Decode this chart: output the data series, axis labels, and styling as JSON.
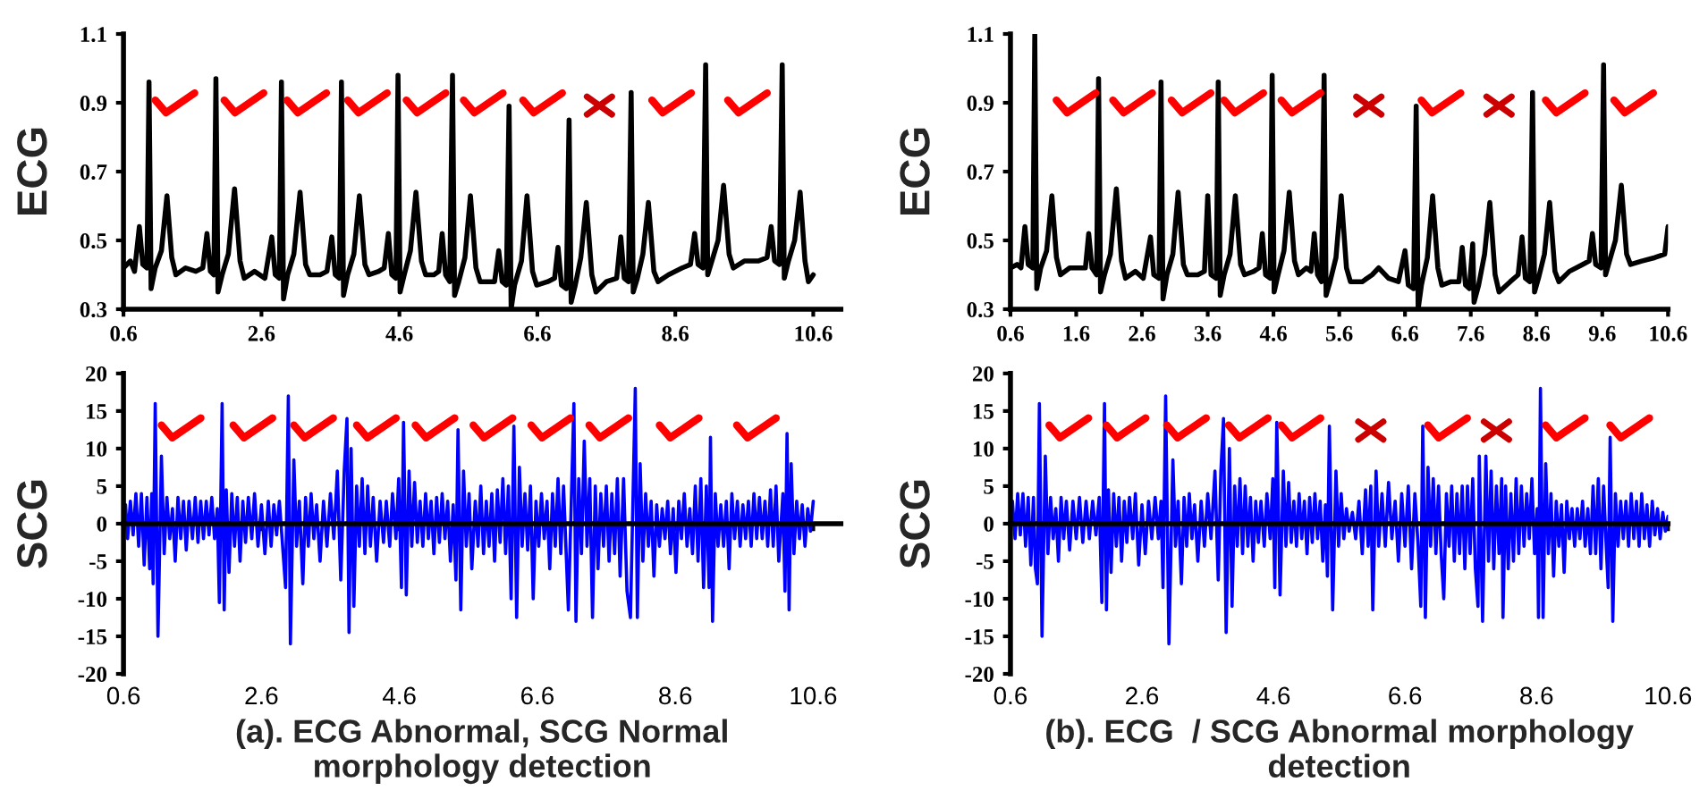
{
  "chart_data": [
    {
      "type": "line",
      "ylabel": "ECG",
      "xlim": [
        0.6,
        11.0
      ],
      "ylim": [
        0.3,
        1.1
      ],
      "xticks": [
        0.6,
        2.6,
        4.6,
        6.6,
        8.6,
        10.6
      ],
      "yticks": [
        0.3,
        0.5,
        0.7,
        0.9,
        1.1
      ],
      "series": [
        {
          "color": "#000000",
          "x": [
            0.6,
            0.7,
            0.76,
            0.83,
            0.88,
            0.94,
            0.97,
            1.0,
            1.06,
            1.15,
            1.23,
            1.3,
            1.36,
            1.5,
            1.65,
            1.75,
            1.81,
            1.86,
            1.91,
            1.94,
            1.97,
            2.03,
            2.12,
            2.21,
            2.29,
            2.35,
            2.5,
            2.65,
            2.75,
            2.8,
            2.86,
            2.89,
            2.92,
            2.98,
            3.07,
            3.16,
            3.24,
            3.3,
            3.45,
            3.55,
            3.62,
            3.67,
            3.73,
            3.76,
            3.79,
            3.85,
            3.94,
            4.02,
            4.1,
            4.16,
            4.3,
            4.38,
            4.44,
            4.49,
            4.55,
            4.58,
            4.61,
            4.67,
            4.76,
            4.84,
            4.92,
            4.98,
            5.1,
            5.17,
            5.22,
            5.27,
            5.33,
            5.37,
            5.4,
            5.46,
            5.55,
            5.63,
            5.71,
            5.77,
            5.9,
            5.98,
            6.04,
            6.09,
            6.15,
            6.19,
            6.22,
            6.27,
            6.37,
            6.45,
            6.53,
            6.59,
            6.75,
            6.85,
            6.9,
            6.95,
            7.02,
            7.06,
            7.09,
            7.15,
            7.23,
            7.31,
            7.39,
            7.45,
            7.6,
            7.75,
            7.81,
            7.86,
            7.92,
            7.96,
            7.99,
            8.05,
            8.13,
            8.21,
            8.29,
            8.35,
            8.5,
            8.7,
            8.82,
            8.88,
            8.93,
            9.0,
            9.04,
            9.07,
            9.13,
            9.22,
            9.3,
            9.38,
            9.44,
            9.6,
            9.8,
            9.93,
            9.99,
            10.04,
            10.11,
            10.15,
            10.18,
            10.24,
            10.33,
            10.41,
            10.48,
            10.53,
            10.6
          ],
          "values": [
            0.42,
            0.44,
            0.41,
            0.54,
            0.43,
            0.42,
            0.96,
            0.36,
            0.42,
            0.47,
            0.63,
            0.45,
            0.4,
            0.42,
            0.41,
            0.42,
            0.52,
            0.41,
            0.4,
            0.97,
            0.35,
            0.4,
            0.46,
            0.65,
            0.44,
            0.39,
            0.41,
            0.39,
            0.51,
            0.4,
            0.39,
            0.96,
            0.33,
            0.4,
            0.46,
            0.64,
            0.43,
            0.4,
            0.4,
            0.41,
            0.51,
            0.4,
            0.39,
            0.96,
            0.34,
            0.4,
            0.46,
            0.63,
            0.43,
            0.4,
            0.41,
            0.42,
            0.52,
            0.4,
            0.39,
            0.98,
            0.35,
            0.4,
            0.47,
            0.64,
            0.44,
            0.4,
            0.4,
            0.41,
            0.52,
            0.4,
            0.38,
            0.98,
            0.34,
            0.38,
            0.45,
            0.63,
            0.42,
            0.38,
            0.38,
            0.38,
            0.47,
            0.38,
            0.37,
            0.89,
            0.3,
            0.37,
            0.44,
            0.63,
            0.41,
            0.37,
            0.38,
            0.39,
            0.48,
            0.37,
            0.36,
            0.85,
            0.32,
            0.37,
            0.45,
            0.61,
            0.4,
            0.35,
            0.38,
            0.39,
            0.51,
            0.39,
            0.38,
            0.93,
            0.35,
            0.39,
            0.46,
            0.61,
            0.41,
            0.38,
            0.4,
            0.42,
            0.43,
            0.52,
            0.43,
            0.42,
            1.01,
            0.4,
            0.44,
            0.5,
            0.66,
            0.46,
            0.42,
            0.44,
            0.44,
            0.45,
            0.54,
            0.44,
            0.43,
            1.01,
            0.39,
            0.44,
            0.5,
            0.64,
            0.44,
            0.38,
            0.4
          ]
        }
      ]
    },
    {
      "type": "line",
      "ylabel": "ECG",
      "xlim": [
        0.6,
        10.6
      ],
      "ylim": [
        0.3,
        1.1
      ],
      "xticks": [
        0.6,
        1.6,
        2.6,
        3.6,
        4.6,
        5.6,
        6.6,
        7.6,
        8.6,
        9.6,
        10.6
      ],
      "yticks": [
        0.3,
        0.5,
        0.7,
        0.9,
        1.1
      ],
      "series": [
        {
          "color": "#000000",
          "x": [
            0.6,
            0.7,
            0.76,
            0.82,
            0.87,
            0.94,
            0.97,
            1.0,
            1.06,
            1.15,
            1.23,
            1.3,
            1.36,
            1.5,
            1.65,
            1.74,
            1.79,
            1.84,
            1.91,
            1.94,
            1.97,
            2.03,
            2.12,
            2.21,
            2.29,
            2.35,
            2.5,
            2.62,
            2.73,
            2.78,
            2.86,
            2.89,
            2.92,
            2.98,
            3.07,
            3.15,
            3.23,
            3.29,
            3.45,
            3.55,
            3.6,
            3.65,
            3.73,
            3.76,
            3.79,
            3.85,
            3.94,
            4.02,
            4.1,
            4.16,
            4.3,
            4.38,
            4.43,
            4.48,
            4.55,
            4.58,
            4.61,
            4.67,
            4.76,
            4.84,
            4.92,
            4.98,
            5.1,
            5.17,
            5.22,
            5.27,
            5.33,
            5.37,
            5.4,
            5.46,
            5.55,
            5.63,
            5.71,
            5.77,
            5.95,
            6.1,
            6.2,
            6.35,
            6.5,
            6.6,
            6.65,
            6.73,
            6.77,
            6.8,
            6.85,
            6.94,
            7.02,
            7.1,
            7.16,
            7.3,
            7.42,
            7.47,
            7.52,
            7.58,
            7.63,
            7.65,
            7.72,
            7.81,
            7.89,
            7.97,
            8.03,
            8.2,
            8.32,
            8.38,
            8.43,
            8.5,
            8.54,
            8.57,
            8.63,
            8.72,
            8.8,
            8.88,
            8.94,
            9.1,
            9.3,
            9.4,
            9.45,
            9.5,
            9.58,
            9.62,
            9.65,
            9.71,
            9.8,
            9.89,
            9.97,
            10.03,
            10.2,
            10.4,
            10.55,
            10.6
          ],
          "values": [
            0.42,
            0.43,
            0.42,
            0.54,
            0.43,
            0.42,
            1.1,
            0.36,
            0.42,
            0.47,
            0.63,
            0.45,
            0.4,
            0.42,
            0.42,
            0.42,
            0.52,
            0.42,
            0.4,
            0.97,
            0.35,
            0.4,
            0.46,
            0.65,
            0.44,
            0.39,
            0.41,
            0.39,
            0.51,
            0.4,
            0.39,
            0.96,
            0.33,
            0.4,
            0.46,
            0.64,
            0.43,
            0.4,
            0.4,
            0.41,
            0.63,
            0.4,
            0.39,
            0.96,
            0.34,
            0.4,
            0.46,
            0.63,
            0.43,
            0.4,
            0.41,
            0.42,
            0.52,
            0.4,
            0.39,
            0.98,
            0.35,
            0.4,
            0.47,
            0.64,
            0.44,
            0.4,
            0.42,
            0.41,
            0.52,
            0.4,
            0.38,
            0.98,
            0.34,
            0.38,
            0.45,
            0.63,
            0.42,
            0.38,
            0.38,
            0.4,
            0.42,
            0.39,
            0.38,
            0.47,
            0.37,
            0.36,
            0.89,
            0.3,
            0.37,
            0.45,
            0.63,
            0.42,
            0.37,
            0.38,
            0.38,
            0.48,
            0.37,
            0.36,
            0.49,
            0.32,
            0.37,
            0.46,
            0.61,
            0.4,
            0.35,
            0.38,
            0.4,
            0.51,
            0.39,
            0.38,
            0.93,
            0.35,
            0.39,
            0.46,
            0.61,
            0.41,
            0.38,
            0.41,
            0.43,
            0.44,
            0.52,
            0.43,
            0.42,
            1.01,
            0.4,
            0.44,
            0.5,
            0.66,
            0.46,
            0.43,
            0.44,
            0.45,
            0.46,
            0.54
          ]
        }
      ]
    },
    {
      "type": "line",
      "ylabel": "SCG",
      "xlim": [
        0.6,
        11.0
      ],
      "ylim": [
        -20,
        20
      ],
      "xticks": [
        0.6,
        2.6,
        4.6,
        6.6,
        8.6,
        10.6
      ],
      "yticks": [
        -20,
        -15,
        -10,
        -5,
        0,
        5,
        10,
        15,
        20
      ],
      "annotations": [
        "(a). ECG Abnormal, SCG Normal\nmorphology detection"
      ],
      "series": [
        {
          "color": "#0000ff",
          "x": [
            0.6,
            0.63,
            0.66,
            0.7,
            0.74,
            0.78,
            0.82,
            0.86,
            0.9,
            0.94,
            0.98,
            1.01,
            1.03,
            1.06,
            1.1,
            1.15,
            1.19,
            1.23,
            1.27,
            1.31,
            1.35,
            1.39,
            1.43,
            1.47,
            1.51,
            1.55,
            1.6,
            1.64,
            1.68,
            1.72,
            1.76,
            1.8,
            1.84,
            1.88,
            1.92,
            1.96,
            1.99,
            2.03,
            2.06,
            2.09,
            2.13,
            2.17,
            2.21,
            2.25,
            2.29,
            2.33,
            2.37,
            2.41,
            2.46,
            2.5,
            2.55,
            2.6,
            2.65,
            2.7,
            2.74,
            2.78,
            2.82,
            2.86,
            2.95,
            2.99,
            3.02,
            3.07,
            3.11,
            3.15,
            3.2,
            3.24,
            3.28,
            3.32,
            3.36,
            3.4,
            3.45,
            3.5,
            3.55,
            3.6,
            3.65,
            3.7,
            3.75,
            3.8,
            3.84,
            3.87,
            3.9,
            3.94,
            3.98,
            4.02,
            4.06,
            4.1,
            4.14,
            4.18,
            4.22,
            4.27,
            4.32,
            4.37,
            4.41,
            4.46,
            4.5,
            4.55,
            4.59,
            4.63,
            4.66,
            4.7,
            4.74,
            4.78,
            4.82,
            4.86,
            4.9,
            4.94,
            4.98,
            5.02,
            5.06,
            5.1,
            5.14,
            5.18,
            5.22,
            5.26,
            5.3,
            5.34,
            5.38,
            5.42,
            5.45,
            5.49,
            5.53,
            5.57,
            5.61,
            5.65,
            5.7,
            5.74,
            5.78,
            5.82,
            5.86,
            5.9,
            5.94,
            5.98,
            6.02,
            6.06,
            6.1,
            6.14,
            6.18,
            6.22,
            6.26,
            6.3,
            6.34,
            6.38,
            6.42,
            6.46,
            6.5,
            6.54,
            6.58,
            6.62,
            6.66,
            6.7,
            6.74,
            6.78,
            6.82,
            6.86,
            6.9,
            6.94,
            6.98,
            7.05,
            7.13,
            7.16,
            7.2,
            7.24,
            7.28,
            7.32,
            7.36,
            7.4,
            7.44,
            7.48,
            7.52,
            7.56,
            7.6,
            7.64,
            7.68,
            7.72,
            7.76,
            7.8,
            7.85,
            7.9,
            7.95,
            8.02,
            8.05,
            8.09,
            8.13,
            8.17,
            8.21,
            8.25,
            8.29,
            8.33,
            8.37,
            8.41,
            8.45,
            8.49,
            8.53,
            8.57,
            8.61,
            8.65,
            8.69,
            8.73,
            8.77,
            8.81,
            8.85,
            8.89,
            8.93,
            8.97,
            9.01,
            9.05,
            9.09,
            9.11,
            9.14,
            9.18,
            9.22,
            9.26,
            9.3,
            9.34,
            9.38,
            9.42,
            9.46,
            9.5,
            9.54,
            9.58,
            9.62,
            9.66,
            9.7,
            9.74,
            9.78,
            9.82,
            9.86,
            9.9,
            9.94,
            9.98,
            10.02,
            10.06,
            10.1,
            10.16,
            10.19,
            10.22,
            10.25,
            10.28,
            10.32,
            10.36,
            10.4,
            10.44,
            10.48,
            10.52,
            10.56,
            10.6
          ],
          "values": [
            0,
            2.5,
            -2,
            3,
            -1.5,
            4,
            -3,
            4,
            -5.5,
            3.5,
            -6,
            4,
            -8,
            16,
            -15,
            9,
            -4,
            3.5,
            -2,
            2,
            -5,
            3.5,
            -2,
            3,
            -3.5,
            3,
            -2,
            3.5,
            -2.5,
            3,
            -2,
            3,
            -1.5,
            3.5,
            -2,
            2,
            -10.5,
            16,
            -11.5,
            4.5,
            -6.5,
            4,
            -3,
            3.5,
            -5,
            3,
            -2.5,
            3.5,
            -2,
            4,
            -3,
            2.5,
            -4,
            3,
            -3,
            2.5,
            -1.5,
            3,
            -8.5,
            17,
            -16,
            8.5,
            -3,
            3,
            -8,
            3.5,
            -3,
            4,
            -2,
            2.5,
            -5,
            3,
            -3,
            4,
            -2,
            7,
            -7.5,
            7,
            14,
            -14.5,
            10,
            -11,
            5,
            -3,
            6,
            -4,
            5,
            -3,
            3.5,
            -5,
            3,
            -2.5,
            3,
            -3,
            4,
            -2,
            6,
            -8.5,
            13.5,
            -9.5,
            7,
            -3,
            5.5,
            -2.5,
            3,
            -3,
            4,
            -2,
            3,
            -4,
            3.5,
            -2.5,
            4,
            -2,
            3,
            -5,
            2.5,
            -7.5,
            12.5,
            -11.5,
            7,
            -3,
            4,
            -6,
            3,
            -3,
            5,
            -4,
            3,
            -3,
            4,
            -5,
            4.5,
            -2.5,
            6,
            -4,
            5,
            -10,
            13,
            -12.5,
            7.5,
            -3,
            4,
            -3.5,
            5,
            -10,
            3,
            -3,
            4,
            -2,
            3,
            -6,
            4,
            -3,
            6,
            -4,
            5,
            -11.5,
            16,
            -13,
            6,
            -4,
            11,
            -3,
            6,
            -12.5,
            5,
            -6,
            4,
            -3,
            5,
            -5,
            4,
            -4,
            6,
            -7,
            6,
            -9,
            -12.5,
            18,
            -12.5,
            8,
            -5,
            4,
            -3,
            3,
            -7,
            2.5,
            -3,
            2,
            -2,
            3,
            -4,
            2,
            -6.5,
            3,
            -2,
            4,
            -3,
            2,
            -4,
            5,
            -5,
            6,
            -8.5,
            5,
            -8.5,
            11.5,
            -13,
            4,
            -3,
            2.5,
            -3,
            3,
            -6,
            4,
            -2,
            3,
            -3,
            2.5,
            -2,
            3,
            -3,
            4,
            -2,
            3.5,
            -2,
            3,
            -3,
            4.5,
            -3,
            5,
            -5,
            4,
            -9,
            12,
            -11.5,
            8,
            -4,
            3,
            -2,
            2.5,
            -3,
            2,
            -1,
            3
          ]
        }
      ]
    },
    {
      "type": "line",
      "ylabel": "SCG",
      "xlim": [
        0.6,
        10.6
      ],
      "ylim": [
        -20,
        20
      ],
      "xticks": [
        0.6,
        2.6,
        4.6,
        6.6,
        8.6,
        10.6
      ],
      "yticks": [
        -20,
        -15,
        -10,
        -5,
        0,
        5,
        10,
        15,
        20
      ],
      "annotations": [
        "(b). ECG  / SCG Abnormal morphology\ndetection"
      ],
      "series": [
        {
          "color": "#0000ff",
          "x": [
            0.6,
            0.63,
            0.67,
            0.71,
            0.75,
            0.79,
            0.83,
            0.87,
            0.91,
            0.95,
            0.98,
            1.01,
            1.04,
            1.08,
            1.13,
            1.17,
            1.21,
            1.25,
            1.29,
            1.33,
            1.37,
            1.41,
            1.45,
            1.5,
            1.55,
            1.6,
            1.65,
            1.7,
            1.75,
            1.8,
            1.85,
            1.9,
            1.95,
            1.99,
            2.03,
            2.06,
            2.09,
            2.13,
            2.17,
            2.21,
            2.25,
            2.29,
            2.33,
            2.37,
            2.41,
            2.46,
            2.5,
            2.55,
            2.6,
            2.65,
            2.7,
            2.75,
            2.8,
            2.85,
            2.89,
            2.92,
            2.96,
            3.01,
            3.07,
            3.11,
            3.15,
            3.2,
            3.24,
            3.28,
            3.32,
            3.36,
            3.4,
            3.45,
            3.5,
            3.55,
            3.6,
            3.65,
            3.71,
            3.76,
            3.8,
            3.84,
            3.88,
            3.93,
            3.97,
            4.01,
            4.05,
            4.09,
            4.13,
            4.17,
            4.21,
            4.25,
            4.29,
            4.33,
            4.37,
            4.41,
            4.46,
            4.5,
            4.55,
            4.59,
            4.62,
            4.65,
            4.7,
            4.75,
            4.79,
            4.83,
            4.87,
            4.91,
            4.95,
            4.99,
            5.03,
            5.07,
            5.11,
            5.15,
            5.19,
            5.23,
            5.27,
            5.31,
            5.35,
            5.39,
            5.42,
            5.45,
            5.5,
            5.55,
            5.59,
            5.63,
            5.67,
            5.71,
            5.75,
            5.8,
            5.85,
            5.9,
            5.95,
            6.0,
            6.04,
            6.08,
            6.11,
            6.16,
            6.2,
            6.25,
            6.3,
            6.35,
            6.4,
            6.45,
            6.5,
            6.55,
            6.6,
            6.65,
            6.7,
            6.75,
            6.8,
            6.84,
            6.87,
            6.91,
            6.95,
            6.99,
            7.03,
            7.07,
            7.11,
            7.15,
            7.19,
            7.23,
            7.27,
            7.31,
            7.35,
            7.39,
            7.43,
            7.47,
            7.51,
            7.55,
            7.59,
            7.63,
            7.67,
            7.71,
            7.73,
            7.78,
            7.83,
            7.87,
            7.91,
            7.95,
            7.99,
            8.03,
            8.07,
            8.09,
            8.13,
            8.17,
            8.21,
            8.25,
            8.29,
            8.33,
            8.37,
            8.41,
            8.45,
            8.49,
            8.53,
            8.57,
            8.61,
            8.63,
            8.66,
            8.7,
            8.74,
            8.78,
            8.82,
            8.86,
            8.9,
            8.94,
            8.98,
            9.02,
            9.06,
            9.1,
            9.14,
            9.18,
            9.22,
            9.26,
            9.3,
            9.34,
            9.38,
            9.42,
            9.46,
            9.5,
            9.54,
            9.58,
            9.62,
            9.66,
            9.69,
            9.72,
            9.76,
            9.8,
            9.84,
            9.88,
            9.92,
            9.96,
            10.0,
            10.04,
            10.08,
            10.12,
            10.16,
            10.2,
            10.24,
            10.28,
            10.32,
            10.36,
            10.4,
            10.44,
            10.48,
            10.52,
            10.56,
            10.6
          ],
          "values": [
            0,
            3,
            -2,
            4,
            -1.5,
            4,
            -3,
            3.5,
            -5.5,
            3.5,
            -6,
            -8,
            16,
            -15,
            9,
            -4,
            3.5,
            -2,
            2,
            -5,
            3.5,
            -2,
            3,
            -3.5,
            3,
            -2,
            3.5,
            -2.5,
            3,
            -2,
            3,
            -1.5,
            3.5,
            -10.5,
            16,
            -11.5,
            4.5,
            -6.5,
            4,
            -3,
            3.5,
            -5,
            3,
            -2.5,
            3.5,
            -2,
            4,
            -5.5,
            2.5,
            -4,
            3,
            -2,
            3.5,
            -2,
            3,
            -8.5,
            17,
            -16,
            8.5,
            -3,
            3,
            -8,
            3.5,
            -3,
            4,
            -2,
            2.5,
            -5,
            3,
            -3,
            4,
            -2,
            7,
            -7.5,
            7,
            14,
            -14.5,
            10,
            -11,
            5,
            -3,
            6,
            -4,
            5,
            -3,
            3.5,
            -5,
            3,
            -2.5,
            3,
            -3,
            4,
            -2,
            6,
            -8.5,
            13.5,
            -9.5,
            7,
            -3,
            5.5,
            -2.5,
            3,
            -3,
            4,
            -2,
            3,
            -4,
            3.5,
            -2.5,
            4,
            -2,
            3,
            -5,
            2.5,
            -7,
            13,
            -11.5,
            7,
            -3,
            4,
            -2,
            2,
            -1,
            1.5,
            -2,
            3,
            -4,
            4.5,
            -3,
            5,
            -11.5,
            7,
            -3,
            4,
            -3,
            5.5,
            -2,
            3,
            -5,
            4,
            -3,
            5,
            -6,
            4,
            -3,
            -11,
            13,
            -12.5,
            7.5,
            -3,
            6,
            -4,
            5,
            -4,
            -10,
            4,
            -3,
            5,
            -5,
            4,
            -4,
            5,
            -6,
            5,
            -4,
            6,
            -6,
            -11,
            9,
            -13,
            9,
            -5,
            7,
            -6,
            5,
            -4,
            6,
            -12.5,
            5,
            -6,
            4,
            -5,
            6,
            -4,
            5,
            -3,
            4,
            -2,
            6,
            -4,
            2,
            -12.5,
            18,
            -12.5,
            8,
            -4,
            4,
            -7,
            3,
            -3,
            2.5,
            -6.5,
            3,
            -2,
            2,
            -3,
            2,
            -2,
            3,
            -3,
            2,
            -4,
            5,
            -4,
            6,
            -6,
            5,
            -3,
            -8.5,
            11.5,
            -13,
            4,
            -3,
            3,
            -2,
            3,
            -3,
            4,
            -2,
            3,
            -3,
            4,
            -2,
            2.5,
            -3,
            3,
            -1.5,
            2,
            -2,
            1.5,
            -1,
            1
          ]
        }
      ]
    }
  ]
}
